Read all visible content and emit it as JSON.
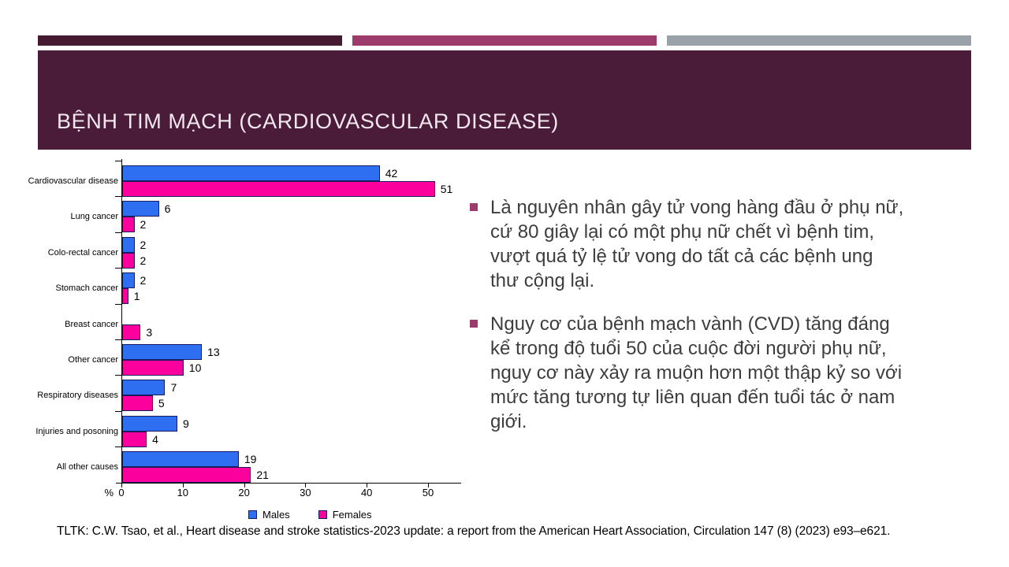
{
  "slide": {
    "title": "BỆNH TIM MẠCH (CARDIOVASCULAR DISEASE)",
    "title_bg": "#4a1c3a",
    "accent_bars": [
      "#451a31",
      "#9d3c6c",
      "#9aa1a9"
    ],
    "bullet_marker_color": "#9d3c6c",
    "body_text_color": "#3d3d3d"
  },
  "bullets": [
    {
      "text": "Là nguyên nhân gây tử vong hàng đầu ở phụ nữ,\ncứ 80 giây lại có một phụ nữ chết vì bệnh tim,\nvượt quá tỷ lệ tử vong do tất cả các bệnh ung\nthư cộng lại."
    },
    {
      "text": "Nguy cơ của bệnh mạch vành (CVD) tăng đáng\nkể trong độ tuổi 50 của cuộc đời người phụ nữ,\nnguy cơ này xảy ra muộn hơn một thập kỷ so với\nmức tăng tương tự liên quan đến tuổi tác ở nam\ngiới."
    }
  ],
  "citation": "TLTK: C.W. Tsao, et al., Heart disease and stroke statistics-2023 update: a report from the American Heart Association, Circulation 147 (8) (2023) e93–e621.",
  "chart_data": {
    "type": "bar",
    "orientation": "horizontal",
    "categories": [
      "Cardiovascular disease",
      "Lung cancer",
      "Colo-rectal cancer",
      "Stomach cancer",
      "Breast cancer",
      "Other cancer",
      "Respiratory diseases",
      "Injuries and posoning",
      "All other causes"
    ],
    "series": [
      {
        "name": "Males",
        "color": "#2e6ff2",
        "values": [
          42,
          6,
          2,
          2,
          null,
          13,
          7,
          9,
          19
        ]
      },
      {
        "name": "Females",
        "color": "#fb009d",
        "values": [
          51,
          2,
          2,
          1,
          3,
          10,
          5,
          4,
          21
        ]
      }
    ],
    "xlabel": "%",
    "x_ticks": [
      0,
      10,
      20,
      30,
      40,
      50
    ],
    "xlim": [
      0,
      55
    ],
    "grid": false,
    "legend_position": "bottom",
    "bar_border_color": "#1a1a5e"
  }
}
